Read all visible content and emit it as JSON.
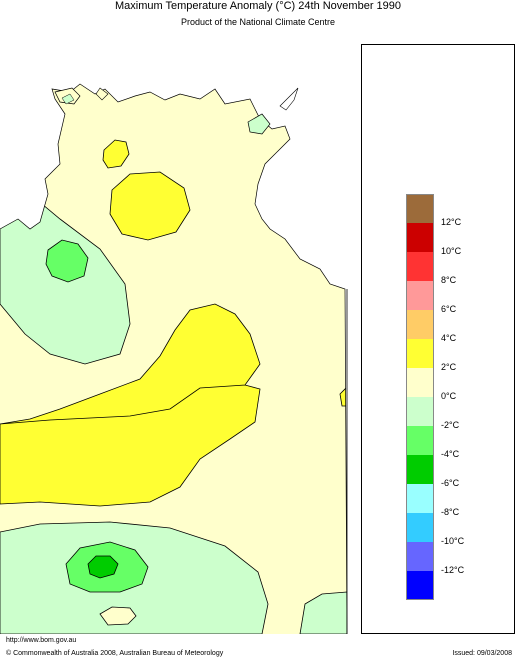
{
  "header": {
    "title": "Maximum Temperature Anomaly (°C)  24th November 1990",
    "subtitle": "Product of the National Climate Centre"
  },
  "legend": {
    "bands": [
      {
        "color": "#9c6b3a"
      },
      {
        "color": "#cc0000"
      },
      {
        "color": "#ff3333"
      },
      {
        "color": "#ff9999"
      },
      {
        "color": "#ffcc66"
      },
      {
        "color": "#ffff33"
      },
      {
        "color": "#ffffcc"
      },
      {
        "color": "#ccffcc"
      },
      {
        "color": "#66ff66"
      },
      {
        "color": "#00cc00"
      },
      {
        "color": "#99ffff"
      },
      {
        "color": "#33ccff"
      },
      {
        "color": "#6666ff"
      },
      {
        "color": "#0000ff"
      }
    ],
    "ticks": [
      "12°C",
      "10°C",
      "8°C",
      "6°C",
      "4°C",
      "2°C",
      "0°C",
      "-2°C",
      "-4°C",
      "-6°C",
      "-8°C",
      "-10°C",
      "-12°C"
    ]
  },
  "footer": {
    "url": "http://www.bom.gov.au",
    "copyright": "© Commonwealth of Australia 2008, Australian Bureau of Meteorology",
    "issued": "Issued: 09/03/2008"
  }
}
